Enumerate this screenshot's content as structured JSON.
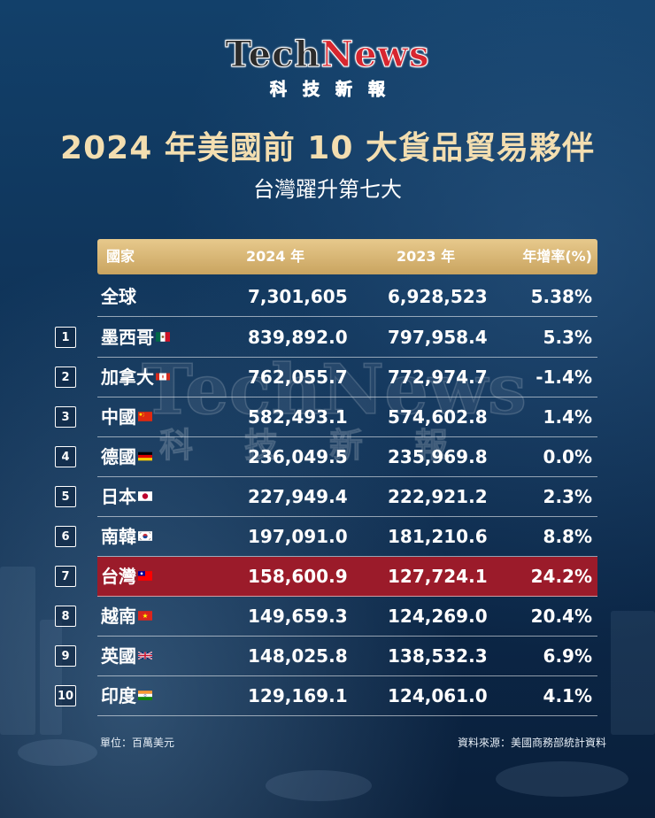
{
  "logo": {
    "brand_part1": "Tech",
    "brand_part2": "News",
    "chinese": "科技新報"
  },
  "title": "2024 年美國前 10 大貨品貿易夥伴",
  "subtitle": "台灣躍升第七大",
  "table": {
    "headers": {
      "country": "國家",
      "y2024": "2024 年",
      "y2023": "2023 年",
      "rate": "年增率(%)"
    },
    "global": {
      "country": "全球",
      "y2024": "7,301,605",
      "y2023": "6,928,523",
      "rate": "5.38%"
    },
    "rows": [
      {
        "rank": "1",
        "country": "墨西哥",
        "flag": "mexico-flag-icon",
        "y2024": "839,892.0",
        "y2023": "797,958.4",
        "rate": "5.3%"
      },
      {
        "rank": "2",
        "country": "加拿大",
        "flag": "canada-flag-icon",
        "y2024": "762,055.7",
        "y2023": "772,974.7",
        "rate": "-1.4%"
      },
      {
        "rank": "3",
        "country": "中國",
        "flag": "china-flag-icon",
        "y2024": "582,493.1",
        "y2023": "574,602.8",
        "rate": "1.4%"
      },
      {
        "rank": "4",
        "country": "德國",
        "flag": "germany-flag-icon",
        "y2024": "236,049.5",
        "y2023": "235,969.8",
        "rate": "0.0%"
      },
      {
        "rank": "5",
        "country": "日本",
        "flag": "japan-flag-icon",
        "y2024": "227,949.4",
        "y2023": "222,921.2",
        "rate": "2.3%"
      },
      {
        "rank": "6",
        "country": "南韓",
        "flag": "korea-flag-icon",
        "y2024": "197,091.0",
        "y2023": "181,210.6",
        "rate": "8.8%"
      },
      {
        "rank": "7",
        "country": "台灣",
        "flag": "taiwan-flag-icon",
        "y2024": "158,600.9",
        "y2023": "127,724.1",
        "rate": "24.2%",
        "highlight_color": "#9b1b2a"
      },
      {
        "rank": "8",
        "country": "越南",
        "flag": "vietnam-flag-icon",
        "y2024": "149,659.3",
        "y2023": "124,269.0",
        "rate": "20.4%"
      },
      {
        "rank": "9",
        "country": "英國",
        "flag": "uk-flag-icon",
        "y2024": "148,025.8",
        "y2023": "138,532.3",
        "rate": "6.9%"
      },
      {
        "rank": "10",
        "country": "印度",
        "flag": "india-flag-icon",
        "y2024": "129,169.1",
        "y2023": "124,061.0",
        "rate": "4.1%"
      }
    ]
  },
  "watermark": {
    "brand": "TechNews",
    "chinese": "科技新報"
  },
  "footer": {
    "unit": "單位：百萬美元",
    "source": "資料來源：美國商務部統計資料"
  },
  "colors": {
    "title_gold": "#f3deb0",
    "header_gold": "#d9b776",
    "highlight_red": "#9b1b2a",
    "logo_red": "#d7262f"
  }
}
